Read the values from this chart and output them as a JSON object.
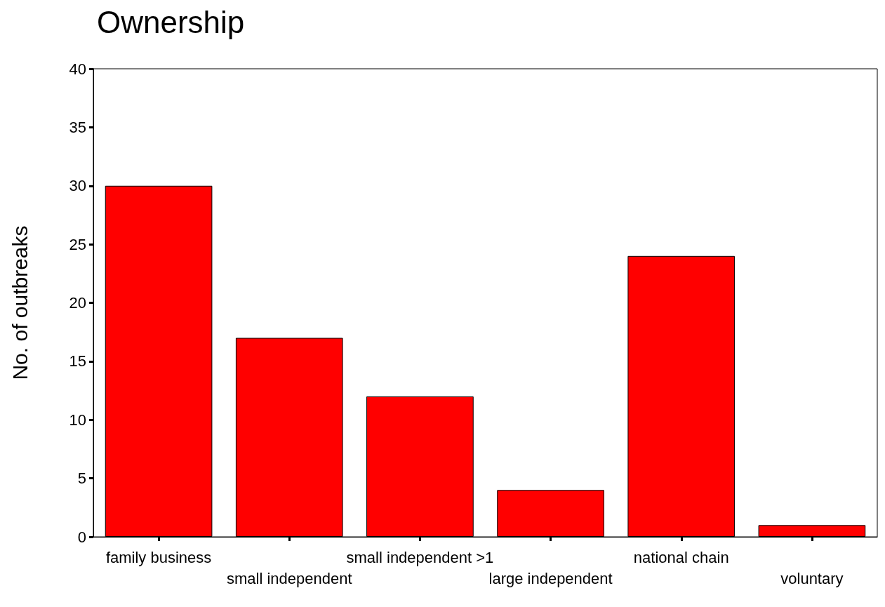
{
  "chart_data": {
    "type": "bar",
    "title": "Ownership",
    "ylabel": "No. of outbreaks",
    "categories": [
      "family business",
      "small independent",
      "small independent >1",
      "large independent",
      "national chain",
      "voluntary"
    ],
    "values": [
      30,
      17,
      12,
      4,
      24,
      1
    ],
    "color": "#ff0000",
    "ylim": [
      0,
      40
    ],
    "yticks": [
      0,
      5,
      10,
      15,
      20,
      25,
      30,
      35,
      40
    ],
    "grid": false
  }
}
